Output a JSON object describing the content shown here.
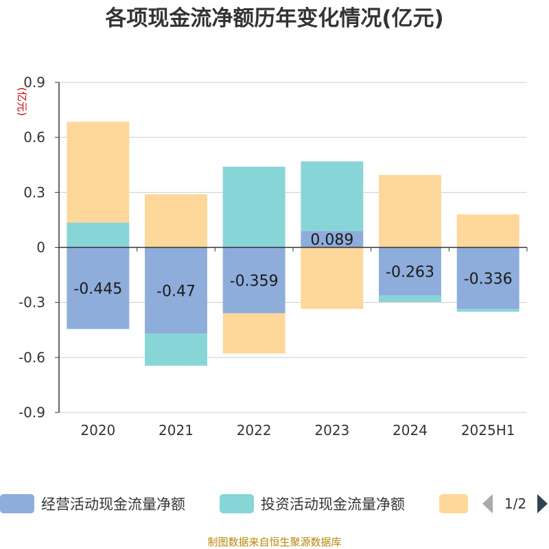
{
  "chart_data": {
    "type": "bar",
    "stacked": true,
    "title": "各项现金流净额历年变化情况(亿元)",
    "unit_label": "(亿元)",
    "categories": [
      "2020",
      "2021",
      "2022",
      "2023",
      "2024",
      "2025H1"
    ],
    "ylim": [
      -0.9,
      0.9
    ],
    "yticks": [
      0.9,
      0.6,
      0.3,
      0,
      -0.3,
      -0.6,
      -0.9
    ],
    "ytick_labels": [
      "0.9",
      "0.6",
      "0.3",
      "0",
      "-0.3",
      "-0.6",
      "-0.9"
    ],
    "grid": true,
    "legend_position": "bottom",
    "series": [
      {
        "name": "经营活动现金流量净额",
        "color": "#8eaddb",
        "values": [
          -0.445,
          -0.47,
          -0.359,
          0.089,
          -0.263,
          -0.336
        ],
        "labels": [
          "-0.445",
          "-0.47",
          "-0.359",
          "0.089",
          "-0.263",
          "-0.336"
        ]
      },
      {
        "name": "投资活动现金流量净额",
        "color": "#88d5d8",
        "values": [
          0.135,
          -0.175,
          0.44,
          0.38,
          -0.035,
          -0.015
        ]
      },
      {
        "name": "",
        "color": "#fed89a",
        "values": [
          0.55,
          0.29,
          -0.22,
          -0.335,
          0.395,
          0.18
        ]
      }
    ]
  },
  "legend": {
    "pager": "1/2"
  },
  "footer": {
    "source": "制图数据来自恒生聚源数据库"
  }
}
